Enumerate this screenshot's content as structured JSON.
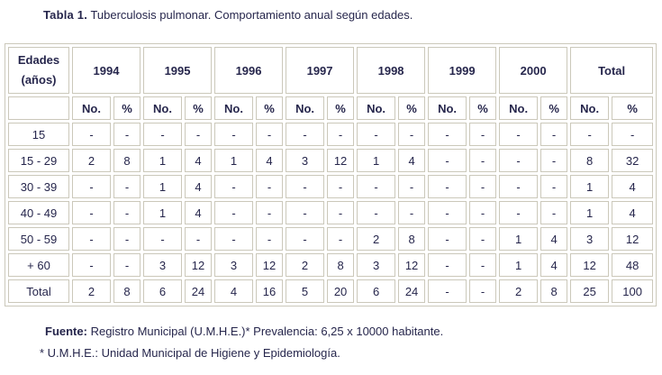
{
  "title": {
    "label": "Tabla 1.",
    "text": "Tuberculosis pulmonar. Comportamiento anual según edades."
  },
  "table": {
    "corner": {
      "line1": "Edades",
      "line2": "(años)"
    },
    "col_groups": [
      "1994",
      "1995",
      "1996",
      "1997",
      "1998",
      "1999",
      "2000",
      "Total"
    ],
    "sub_no": "No.",
    "sub_pct": "%",
    "rows": [
      {
        "label": "15",
        "values": [
          "-",
          "-",
          "-",
          "-",
          "-",
          "-",
          "-",
          "-",
          "-",
          "-",
          "-",
          "-",
          "-",
          "-",
          "-",
          "-"
        ]
      },
      {
        "label": "15 - 29",
        "values": [
          "2",
          "8",
          "1",
          "4",
          "1",
          "4",
          "3",
          "12",
          "1",
          "4",
          "-",
          "-",
          "-",
          "-",
          "8",
          "32"
        ]
      },
      {
        "label": "30 - 39",
        "values": [
          "-",
          "-",
          "1",
          "4",
          "-",
          "-",
          "-",
          "-",
          "-",
          "-",
          "-",
          "-",
          "-",
          "-",
          "1",
          "4"
        ]
      },
      {
        "label": "40 - 49",
        "values": [
          "-",
          "-",
          "1",
          "4",
          "-",
          "-",
          "-",
          "-",
          "-",
          "-",
          "-",
          "-",
          "-",
          "-",
          "1",
          "4"
        ]
      },
      {
        "label": "50 - 59",
        "values": [
          "-",
          "-",
          "-",
          "-",
          "-",
          "-",
          "-",
          "-",
          "2",
          "8",
          "-",
          "-",
          "1",
          "4",
          "3",
          "12"
        ]
      },
      {
        "label": "+ 60",
        "values": [
          "-",
          "-",
          "3",
          "12",
          "3",
          "12",
          "2",
          "8",
          "3",
          "12",
          "-",
          "-",
          "1",
          "4",
          "12",
          "48"
        ]
      },
      {
        "label": "Total",
        "values": [
          "2",
          "8",
          "6",
          "24",
          "4",
          "16",
          "5",
          "20",
          "6",
          "24",
          "-",
          "-",
          "2",
          "8",
          "25",
          "100"
        ]
      }
    ]
  },
  "footer": {
    "fuente_label": "Fuente:",
    "fuente_text": "Registro Municipal (U.M.H.E.)* Prevalencia: 6,25 x 10000 habitante.",
    "note": "* U.M.H.E.: Unidad Municipal de Higiene y Epidemiología."
  },
  "colors": {
    "border": "#cbc8ba",
    "text": "#26264c",
    "background": "#ffffff"
  }
}
